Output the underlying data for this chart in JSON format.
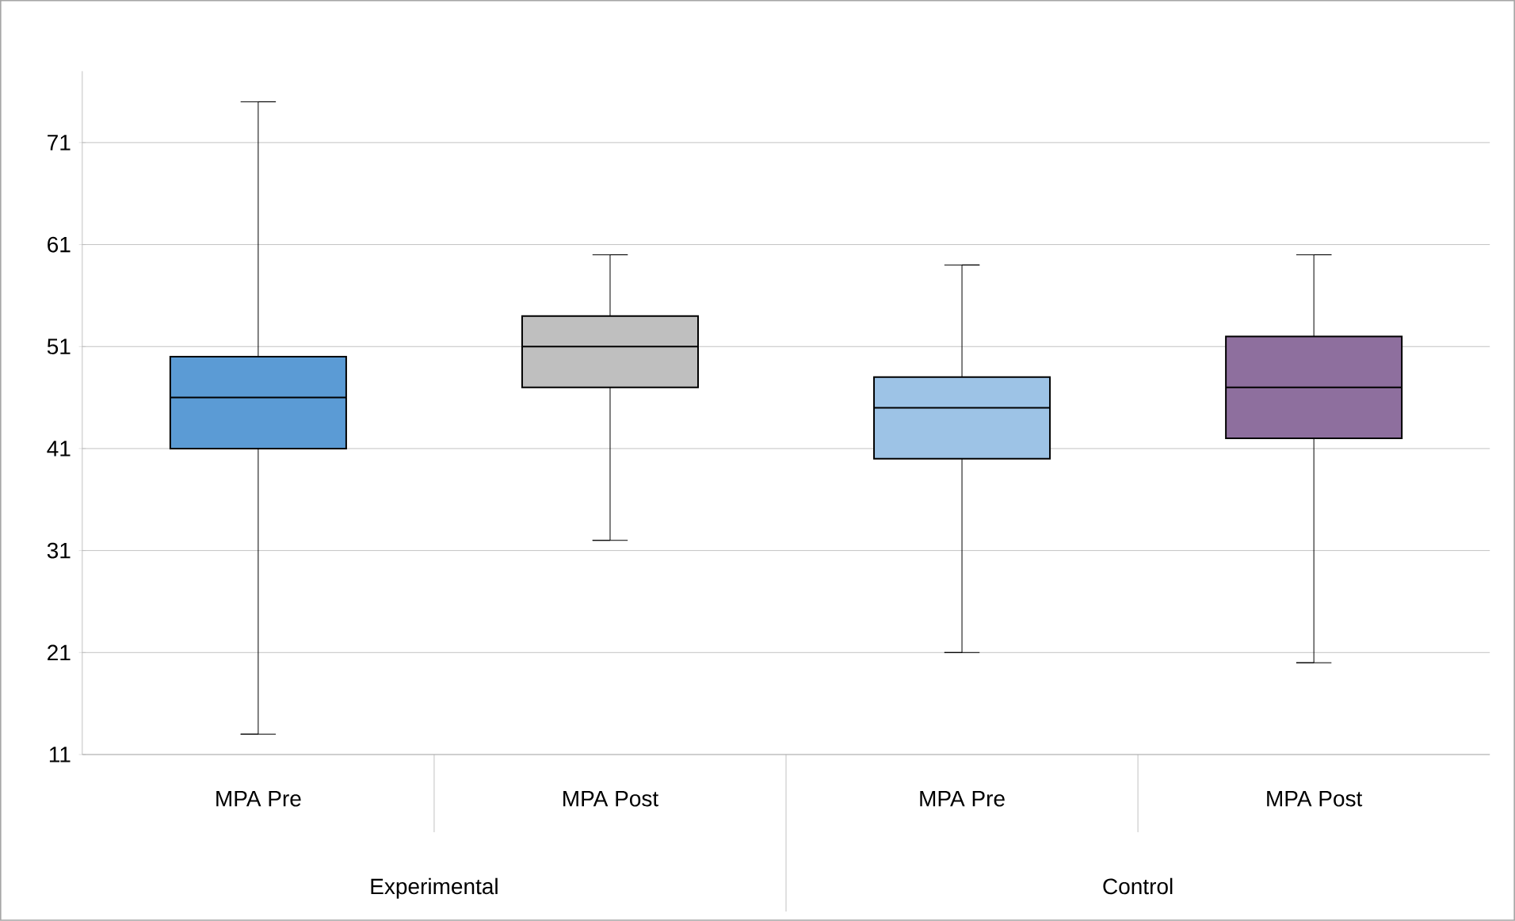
{
  "chart_data": {
    "type": "box",
    "categories": [
      "MPA Pre",
      "MPA Post",
      "MPA Pre",
      "MPA Post"
    ],
    "boxes": [
      {
        "low": 13,
        "q1": 41,
        "median": 46,
        "q3": 50,
        "high": 75
      },
      {
        "low": 32,
        "q1": 47,
        "median": 51,
        "q3": 54,
        "high": 60
      },
      {
        "low": 21,
        "q1": 40,
        "median": 45,
        "q3": 48,
        "high": 59
      },
      {
        "low": 20,
        "q1": 42,
        "median": 47,
        "q3": 52,
        "high": 60
      }
    ],
    "colors": [
      "#5b9bd5",
      "#bfbfbf",
      "#9dc3e6",
      "#8e6f9e"
    ],
    "ylim": [
      11,
      78
    ],
    "yticks": [
      11,
      21,
      31,
      41,
      51,
      61,
      71
    ],
    "grid": "y",
    "annotations": [
      "Experimental",
      "Control"
    ]
  }
}
